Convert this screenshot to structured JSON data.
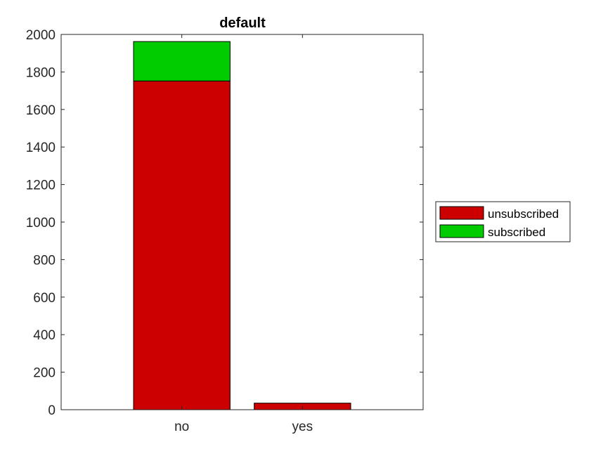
{
  "chart_data": {
    "type": "bar",
    "stacked": true,
    "title": "default",
    "xlabel": "",
    "ylabel": "",
    "categories": [
      "no",
      "yes"
    ],
    "series": [
      {
        "name": "unsubscribed",
        "color": "#cc0000",
        "values": [
          1752,
          35
        ]
      },
      {
        "name": "subscribed",
        "color": "#00cc00",
        "values": [
          210,
          0
        ]
      }
    ],
    "ylim": [
      0,
      2000
    ],
    "yticks": [
      0,
      200,
      400,
      600,
      800,
      1000,
      1200,
      1400,
      1600,
      1800,
      2000
    ],
    "grid": false,
    "legend_position": "outside-right"
  }
}
